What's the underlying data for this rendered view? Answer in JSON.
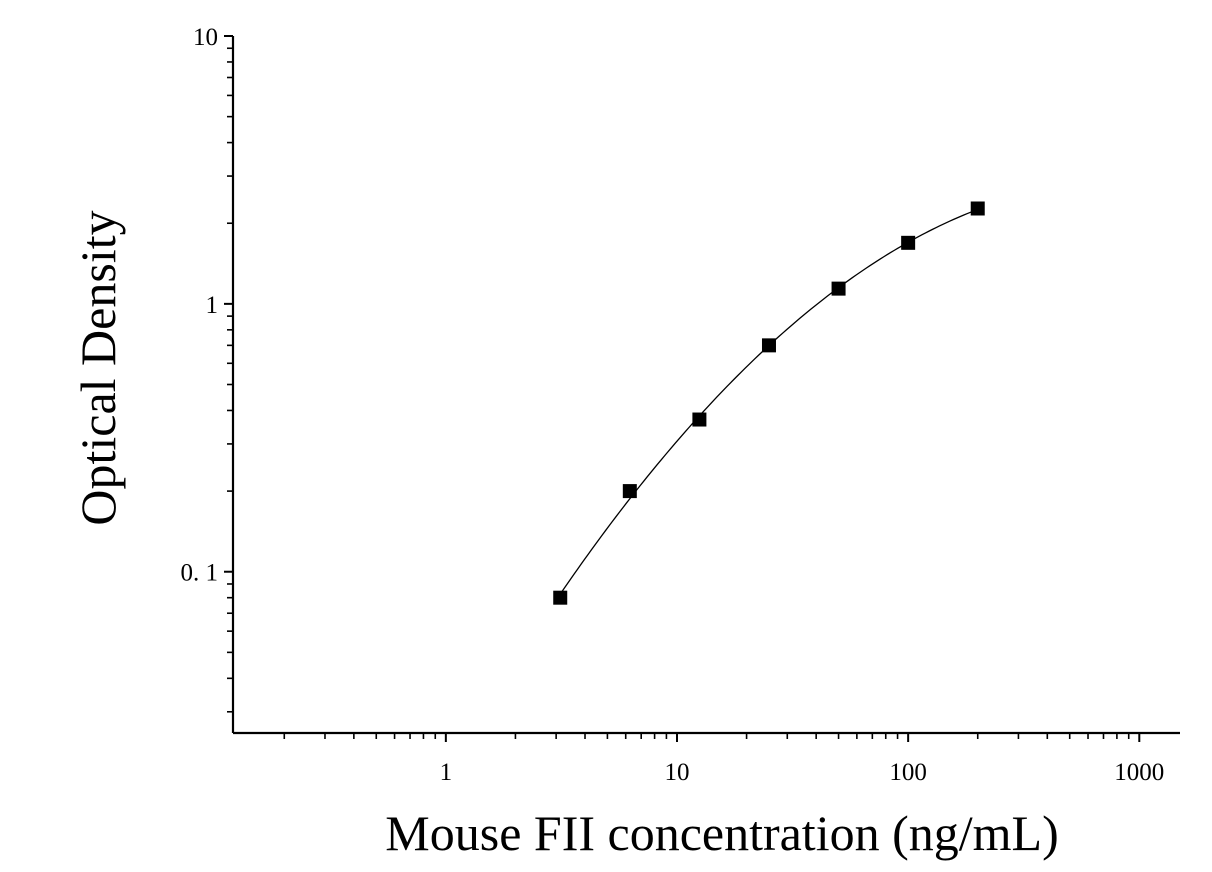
{
  "chart_data": {
    "type": "scatter",
    "xscale": "log",
    "yscale": "log",
    "xlabel": "Mouse FII concentration (ng/mL)",
    "ylabel": "Optical Density",
    "xlim": [
      0.12,
      1500
    ],
    "ylim": [
      0.025,
      10
    ],
    "x_ticks": [
      {
        "value": 1,
        "label": "1"
      },
      {
        "value": 10,
        "label": "10"
      },
      {
        "value": 100,
        "label": "100"
      },
      {
        "value": 1000,
        "label": "1000"
      }
    ],
    "y_ticks": [
      {
        "value": 0.1,
        "label": "0. 1"
      },
      {
        "value": 1,
        "label": "1"
      },
      {
        "value": 10,
        "label": "10"
      }
    ],
    "grid": false,
    "legend": "none",
    "series": [
      {
        "x": [
          3.125,
          6.25,
          12.5,
          25,
          50,
          100,
          200
        ],
        "y": [
          0.08,
          0.2,
          0.37,
          0.7,
          1.14,
          1.69,
          2.27
        ],
        "marker": "square",
        "fit_curve": true
      }
    ],
    "colors": {
      "axis": "#000000",
      "marker": "#000000",
      "curve": "#000000",
      "background": "#ffffff"
    }
  }
}
